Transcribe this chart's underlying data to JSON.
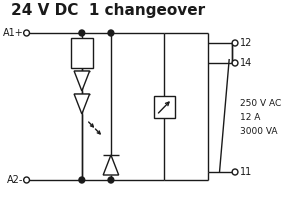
{
  "title": "24 V DC  1 changeover",
  "title_fontsize": 11,
  "bg_color": "#ffffff",
  "line_color": "#1a1a1a",
  "lw": 1.0,
  "fig_w": 3.0,
  "fig_h": 2.08,
  "dpi": 100,
  "labels": {
    "A1": "A1+",
    "A2": "A2-",
    "t12": "12",
    "t14": "14",
    "t11": "11",
    "spec1": "250 V AC",
    "spec2": "12 A",
    "spec3": "3000 VA"
  }
}
